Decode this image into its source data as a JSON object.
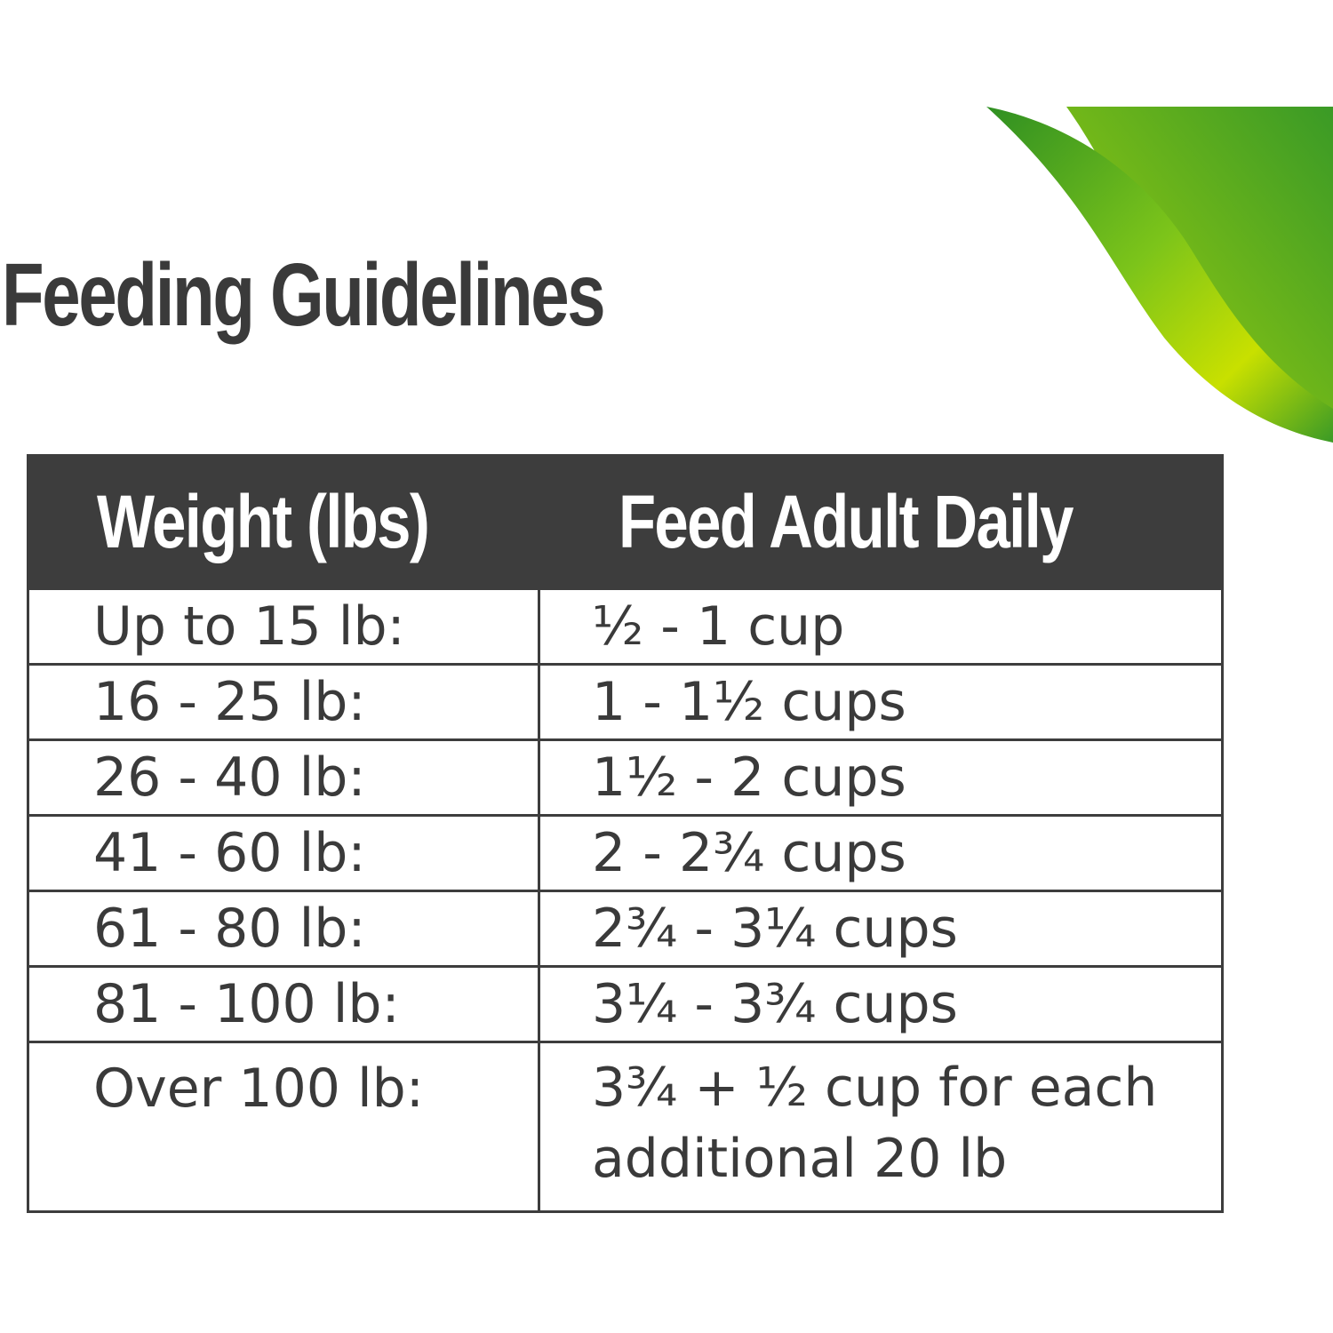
{
  "title": "Feeding Guidelines",
  "colors": {
    "header_bg": "#3d3d3d",
    "text": "#3a3a3a",
    "leaf_dark": "#3a9a26",
    "leaf_light": "#c8e000"
  },
  "table": {
    "headers": [
      "Weight (lbs)",
      "Feed Adult Daily"
    ],
    "rows": [
      {
        "weight": "Up to 15 lb:",
        "amount": "½ - 1 cup"
      },
      {
        "weight": "16 - 25 lb:",
        "amount": "1 - 1½ cups"
      },
      {
        "weight": "26 - 40 lb:",
        "amount": "1½ - 2 cups"
      },
      {
        "weight": "41 - 60 lb:",
        "amount": "2 - 2¾ cups"
      },
      {
        "weight": "61 - 80 lb:",
        "amount": "2¾ - 3¼ cups"
      },
      {
        "weight": "81 - 100 lb:",
        "amount": "3¼ - 3¾ cups"
      },
      {
        "weight": "Over 100 lb:",
        "amount": "3¾ + ½ cup for each additional 20 lb"
      }
    ]
  }
}
